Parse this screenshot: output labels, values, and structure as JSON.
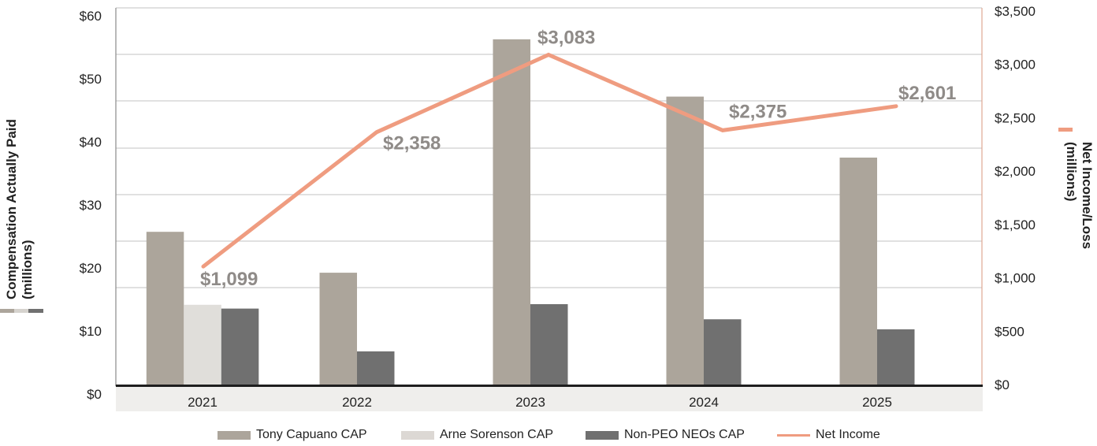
{
  "chart_data": {
    "type": "bar",
    "title": "",
    "categories": [
      "2021",
      "2022",
      "2023",
      "2024",
      "2025"
    ],
    "series": [
      {
        "name": "Tony Capuano CAP",
        "axis": "left",
        "kind": "bar",
        "color": "#aca59b",
        "values": [
          24.4,
          17.9,
          55.0,
          45.9,
          36.2
        ]
      },
      {
        "name": "Arne Sorenson CAP",
        "axis": "left",
        "kind": "bar",
        "color": "#e0deda",
        "values": [
          12.8,
          null,
          null,
          null,
          null
        ]
      },
      {
        "name": "Non-PEO NEOs CAP",
        "axis": "left",
        "kind": "bar",
        "color": "#707070",
        "values": [
          12.2,
          5.4,
          12.9,
          10.5,
          8.9
        ]
      },
      {
        "name": "Net Income",
        "axis": "right",
        "kind": "line",
        "color": "#ef9c80",
        "values": [
          1099,
          2358,
          3083,
          2375,
          2601
        ],
        "labels": [
          "$1,099",
          "$2,358",
          "$3,083",
          "$2,375",
          "$2,601"
        ]
      }
    ],
    "left_axis": {
      "title": "Compensation Actually Paid",
      "subtitle": "(millions)",
      "ylim": [
        0,
        60
      ],
      "ticks": [
        "$0",
        "$10",
        "$20",
        "$30",
        "$40",
        "$50",
        "$60"
      ]
    },
    "right_axis": {
      "title": "Net Income/Loss",
      "subtitle": "(millions)",
      "ylim": [
        0,
        3500
      ],
      "ticks": [
        "$0",
        "$500",
        "$1,000",
        "$1,500",
        "$2,000",
        "$2,500",
        "$3,000",
        "$3,500"
      ]
    },
    "grid": true,
    "legend_position": "bottom",
    "legend": [
      "Tony Capuano CAP",
      "Arne Sorenson CAP",
      "Non-PEO NEOs CAP",
      "Net Income"
    ]
  }
}
